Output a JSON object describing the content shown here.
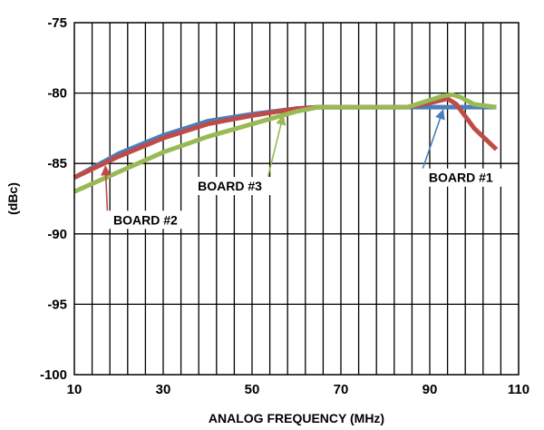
{
  "chart_data": {
    "type": "line",
    "title": "",
    "xlabel": "ANALOG FREQUENCY (MHz)",
    "ylabel": "(dBc)",
    "xlim": [
      10,
      110
    ],
    "ylim": [
      -100,
      -75
    ],
    "x_ticks": [
      10,
      30,
      50,
      70,
      90,
      110
    ],
    "y_ticks": [
      -75,
      -80,
      -85,
      -90,
      -95,
      -100
    ],
    "x_tick_labels": [
      "10",
      "30",
      "50",
      "70",
      "90",
      "110"
    ],
    "y_tick_labels": [
      "-75",
      "-80",
      "-85",
      "-90",
      "-95",
      "-100"
    ],
    "grid": true,
    "vertical_grid_step": 4,
    "series": [
      {
        "name": "BOARD #1",
        "color": "#4a7ebb",
        "x": [
          10,
          20,
          30,
          40,
          44,
          50,
          60,
          65,
          70,
          80,
          85,
          90,
          100,
          105
        ],
        "y": [
          -86.0,
          -84.3,
          -83.0,
          -82.0,
          -81.8,
          -81.5,
          -81.1,
          -81.0,
          -81.0,
          -81.0,
          -81.0,
          -81.0,
          -81.0,
          -81.0
        ]
      },
      {
        "name": "BOARD #2",
        "color": "#be4b48",
        "x": [
          10,
          20,
          30,
          40,
          50,
          60,
          65,
          70,
          80,
          85,
          90,
          94,
          96,
          100,
          105
        ],
        "y": [
          -86.0,
          -84.5,
          -83.2,
          -82.2,
          -81.6,
          -81.1,
          -81.0,
          -81.0,
          -81.0,
          -81.0,
          -80.7,
          -80.4,
          -80.8,
          -82.5,
          -84.0
        ]
      },
      {
        "name": "BOARD #3",
        "color": "#98b954",
        "x": [
          10,
          20,
          30,
          40,
          50,
          60,
          65,
          70,
          80,
          85,
          90,
          93,
          95,
          97,
          100,
          105
        ],
        "y": [
          -87.0,
          -85.6,
          -84.2,
          -83.1,
          -82.2,
          -81.3,
          -81.0,
          -81.0,
          -81.0,
          -81.0,
          -80.5,
          -80.2,
          -80.1,
          -80.3,
          -80.8,
          -81.0
        ]
      }
    ],
    "annotations": [
      {
        "text": "BOARD #1",
        "series": "BOARD #1",
        "arrow_color": "#4a7ebb",
        "label_x": 97,
        "label_y": -86.0,
        "tip_x": 93,
        "tip_y": -81.2
      },
      {
        "text": "BOARD #2",
        "series": "BOARD #2",
        "arrow_color": "#be4b48",
        "label_x": 26,
        "label_y": -89.0,
        "tip_x": 17,
        "tip_y": -85.2
      },
      {
        "text": "BOARD #3",
        "series": "BOARD #3",
        "arrow_color": "#98b954",
        "label_x": 45,
        "label_y": -86.6,
        "tip_x": 57,
        "tip_y": -81.6
      }
    ]
  }
}
